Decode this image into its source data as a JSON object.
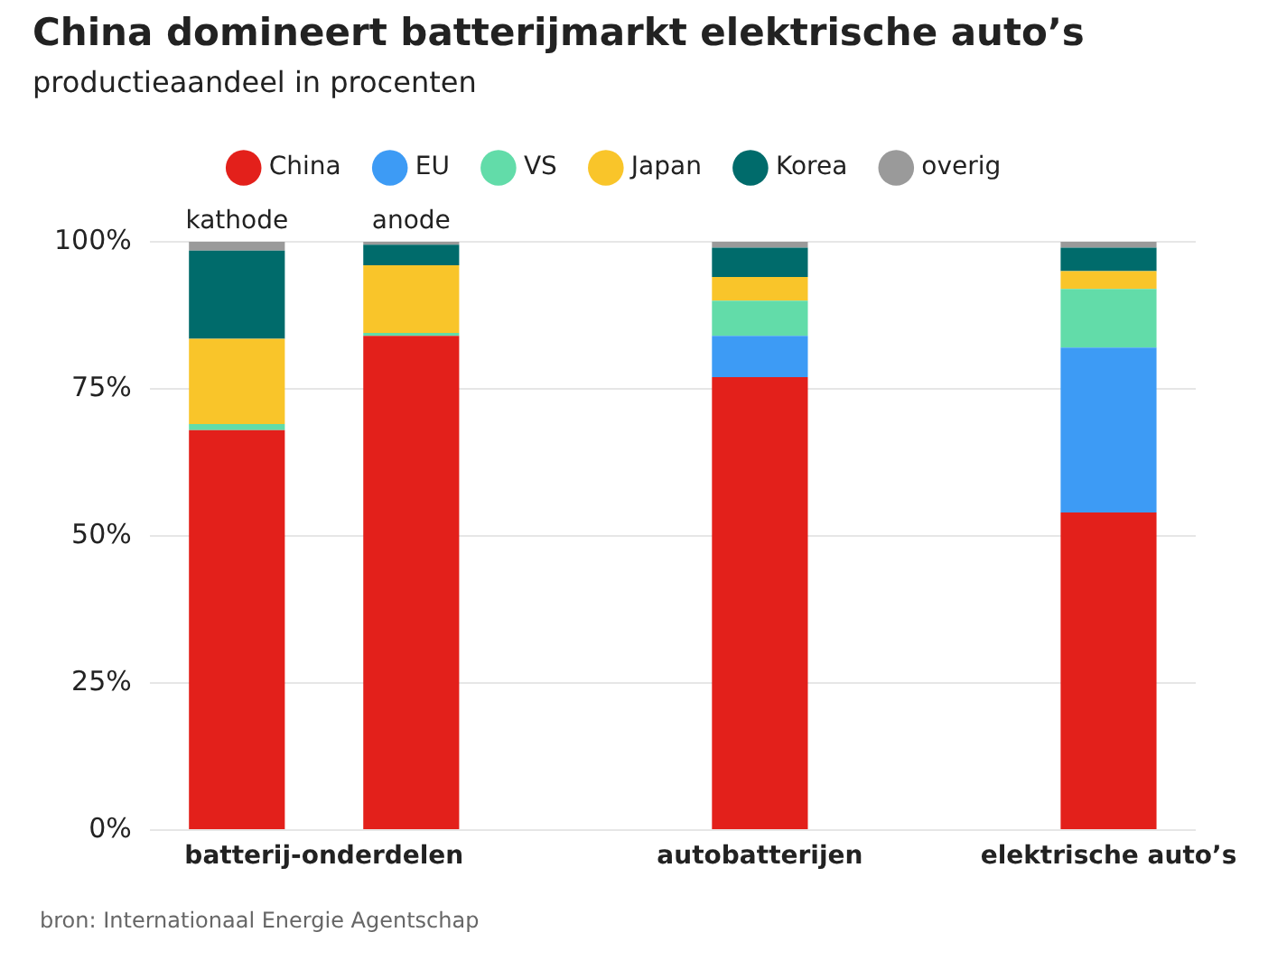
{
  "chart_data": {
    "type": "bar",
    "stacked": true,
    "title": "China domineert batterijmarkt elektrische auto’s",
    "subtitle": "productieaandeel in procenten",
    "categories": [
      "kathode",
      "anode",
      null,
      "autobatterijen",
      null,
      "elektrische auto’s"
    ],
    "series": [
      {
        "name": "China",
        "color": "#e3201b",
        "values": [
          68,
          84,
          null,
          77,
          null,
          54
        ]
      },
      {
        "name": "EU",
        "color": "#3d9bf5",
        "values": [
          0,
          0,
          null,
          7,
          null,
          28
        ]
      },
      {
        "name": "VS",
        "color": "#62dca9",
        "values": [
          1,
          0.5,
          null,
          6,
          null,
          10
        ]
      },
      {
        "name": "Japan",
        "color": "#f9c52a",
        "values": [
          14.5,
          11.5,
          null,
          4,
          null,
          3
        ]
      },
      {
        "name": "Korea",
        "color": "#006b6b",
        "values": [
          15,
          3.5,
          null,
          5,
          null,
          4
        ]
      },
      {
        "name": "overig",
        "color": "#9a9a9a",
        "values": [
          1.5,
          0.5,
          null,
          1,
          null,
          1
        ]
      }
    ],
    "ylim": [
      0,
      100
    ],
    "yticks": [
      {
        "value": 0,
        "label": "0%"
      },
      {
        "value": 25,
        "label": "25%"
      },
      {
        "value": 50,
        "label": "50%"
      },
      {
        "value": 75,
        "label": "75%"
      },
      {
        "value": 100,
        "label": "100%"
      }
    ],
    "grid": "y",
    "legend": "top",
    "annotations": [
      "batterij-onderdelen",
      "bron: Internationaal Energie Agentschap"
    ]
  }
}
